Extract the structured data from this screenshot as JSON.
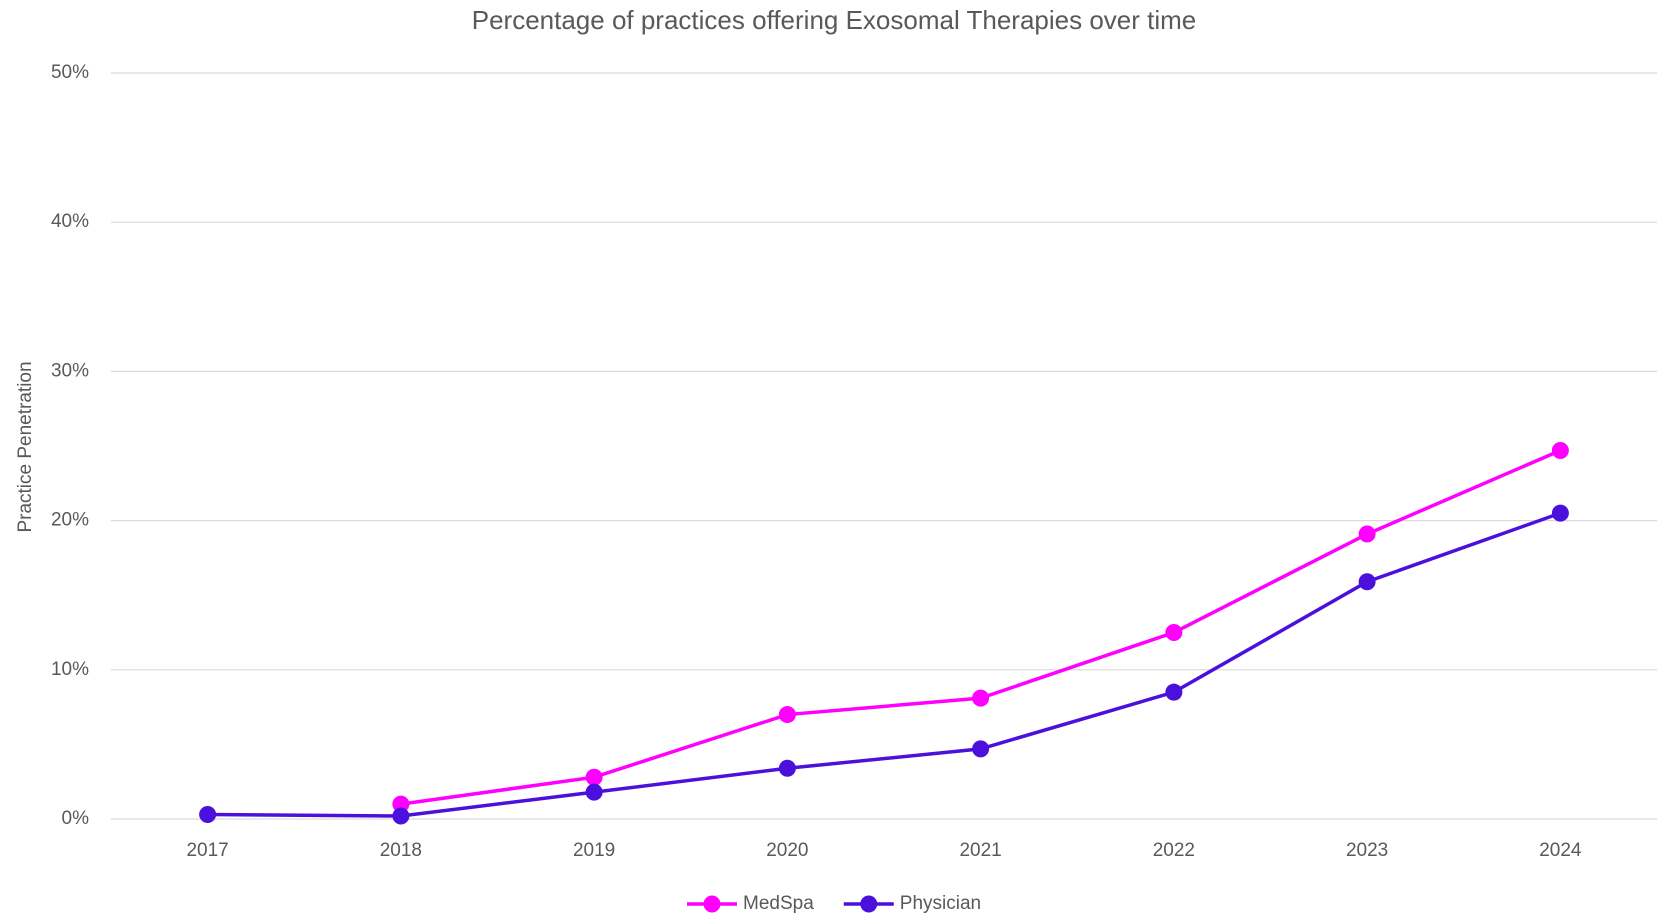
{
  "chart_data": {
    "type": "line",
    "title": "Percentage of practices offering Exosomal Therapies over time",
    "ylabel": "Practice Penetration",
    "categories": [
      "2017",
      "2018",
      "2019",
      "2020",
      "2021",
      "2022",
      "2023",
      "2024"
    ],
    "series": [
      {
        "name": "MedSpa",
        "color": "#ff00ff",
        "values": [
          null,
          1.0,
          2.8,
          7.0,
          8.1,
          12.5,
          19.1,
          24.7
        ]
      },
      {
        "name": "Physician",
        "color": "#4b10dc",
        "values": [
          0.3,
          0.2,
          1.8,
          3.4,
          4.7,
          8.5,
          15.9,
          20.5
        ]
      }
    ],
    "ylim": [
      0,
      50
    ],
    "yticks": [
      {
        "value": 0,
        "label": "0%"
      },
      {
        "value": 10,
        "label": "10%"
      },
      {
        "value": 20,
        "label": "20%"
      },
      {
        "value": 30,
        "label": "30%"
      },
      {
        "value": 40,
        "label": "40%"
      },
      {
        "value": 50,
        "label": "50%"
      }
    ],
    "grid": true,
    "legend": "bottom"
  }
}
